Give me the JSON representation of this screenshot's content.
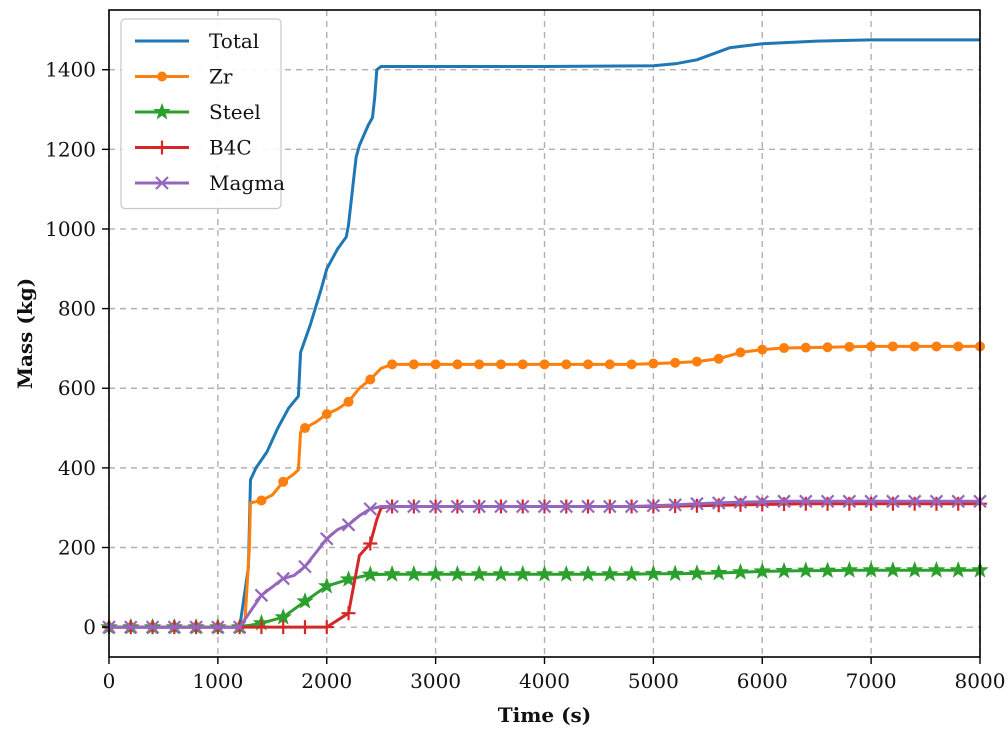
{
  "chart_data": {
    "type": "line",
    "title": "",
    "xlabel": "Time (s)",
    "ylabel": "Mass (kg)",
    "xlim": [
      0,
      8000
    ],
    "ylim": [
      -75,
      1550
    ],
    "xticks": [
      0,
      1000,
      2000,
      3000,
      4000,
      5000,
      6000,
      7000,
      8000
    ],
    "yticks": [
      0,
      200,
      400,
      600,
      800,
      1000,
      1200,
      1400
    ],
    "grid": true,
    "legend_position": "top-left",
    "series": [
      {
        "name": "Total",
        "color": "#1f77b4",
        "marker": "none",
        "x": [
          0,
          1000,
          1200,
          1280,
          1300,
          1350,
          1450,
          1550,
          1650,
          1740,
          1760,
          1850,
          1950,
          2000,
          2100,
          2180,
          2200,
          2270,
          2300,
          2380,
          2420,
          2440,
          2460,
          2500,
          2600,
          3000,
          4000,
          5000,
          5200,
          5400,
          5500,
          5600,
          5700,
          6000,
          6500,
          7000,
          7500,
          8000
        ],
        "y": [
          0,
          0,
          0,
          150,
          370,
          400,
          440,
          500,
          550,
          580,
          690,
          760,
          850,
          900,
          950,
          980,
          1010,
          1180,
          1210,
          1260,
          1280,
          1330,
          1400,
          1408,
          1408,
          1408,
          1408,
          1410,
          1415,
          1425,
          1435,
          1445,
          1455,
          1465,
          1472,
          1475,
          1475,
          1475
        ]
      },
      {
        "name": "Zr",
        "color": "#ff7f0e",
        "marker": "circle",
        "x": [
          0,
          200,
          400,
          600,
          800,
          1000,
          1200,
          1250,
          1290,
          1300,
          1400,
          1500,
          1600,
          1700,
          1740,
          1760,
          1800,
          1900,
          2000,
          2100,
          2200,
          2300,
          2400,
          2500,
          2600,
          2800,
          3000,
          3200,
          3400,
          3600,
          3800,
          4000,
          4200,
          4400,
          4600,
          4800,
          5000,
          5200,
          5400,
          5600,
          5800,
          6000,
          6200,
          6400,
          6600,
          6800,
          7000,
          7200,
          7400,
          7600,
          7800,
          8000
        ],
        "y": [
          0,
          0,
          0,
          0,
          0,
          0,
          0,
          20,
          200,
          312,
          318,
          332,
          365,
          385,
          395,
          490,
          500,
          515,
          535,
          548,
          566,
          600,
          622,
          650,
          660,
          660,
          660,
          660,
          660,
          660,
          660,
          660,
          660,
          660,
          660,
          660,
          662,
          664,
          667,
          674,
          690,
          697,
          701,
          702,
          703,
          704,
          705,
          705,
          705,
          705,
          705,
          705
        ]
      },
      {
        "name": "Steel",
        "color": "#2ca02c",
        "marker": "star",
        "x": [
          0,
          200,
          400,
          600,
          800,
          1000,
          1200,
          1400,
          1600,
          1800,
          2000,
          2200,
          2400,
          2600,
          2800,
          3000,
          3200,
          3400,
          3600,
          3800,
          4000,
          4200,
          4400,
          4600,
          4800,
          5000,
          5200,
          5400,
          5600,
          5800,
          6000,
          6200,
          6400,
          6600,
          6800,
          7000,
          7200,
          7400,
          7600,
          7800,
          8000
        ],
        "y": [
          0,
          0,
          0,
          0,
          0,
          0,
          0,
          10,
          25,
          65,
          103,
          120,
          132,
          133,
          133,
          133,
          133,
          133,
          133,
          133,
          133,
          133,
          133,
          133,
          133,
          134,
          134,
          135,
          136,
          138,
          140,
          141,
          142,
          142,
          143,
          143,
          143,
          143,
          143,
          143,
          143
        ]
      },
      {
        "name": "B4C",
        "color": "#d62728",
        "marker": "plus",
        "x": [
          0,
          200,
          400,
          600,
          800,
          1000,
          1200,
          1400,
          1600,
          1800,
          2000,
          2200,
          2300,
          2400,
          2460,
          2500,
          2600,
          2800,
          3000,
          3200,
          3400,
          3600,
          3800,
          4000,
          4200,
          4400,
          4600,
          4800,
          5000,
          5200,
          5400,
          5600,
          5800,
          6000,
          6200,
          6400,
          6600,
          6800,
          7000,
          7200,
          7400,
          7600,
          7800,
          8000
        ],
        "y": [
          0,
          0,
          0,
          0,
          0,
          0,
          0,
          0,
          0,
          0,
          0,
          35,
          180,
          210,
          270,
          300,
          303,
          303,
          303,
          303,
          303,
          303,
          303,
          303,
          303,
          303,
          303,
          303,
          303,
          304,
          305,
          306,
          307,
          308,
          309,
          310,
          310,
          310,
          310,
          310,
          310,
          310,
          310,
          310
        ]
      },
      {
        "name": "Magma",
        "color": "#9467bd",
        "marker": "x",
        "x": [
          0,
          200,
          400,
          600,
          800,
          1000,
          1200,
          1300,
          1400,
          1600,
          1700,
          1800,
          2000,
          2100,
          2200,
          2300,
          2400,
          2500,
          2600,
          2800,
          3000,
          3200,
          3400,
          3600,
          3800,
          4000,
          4200,
          4400,
          4600,
          4800,
          5000,
          5200,
          5400,
          5600,
          5800,
          6000,
          6200,
          6400,
          6600,
          6800,
          7000,
          7200,
          7400,
          7600,
          7800,
          8000
        ],
        "y": [
          0,
          0,
          0,
          0,
          0,
          0,
          0,
          40,
          80,
          122,
          130,
          152,
          222,
          245,
          257,
          280,
          297,
          303,
          303,
          303,
          303,
          303,
          303,
          303,
          303,
          303,
          303,
          303,
          303,
          303,
          305,
          307,
          310,
          312,
          314,
          315,
          316,
          316,
          316,
          316,
          316,
          316,
          316,
          316,
          316,
          316
        ]
      }
    ]
  }
}
